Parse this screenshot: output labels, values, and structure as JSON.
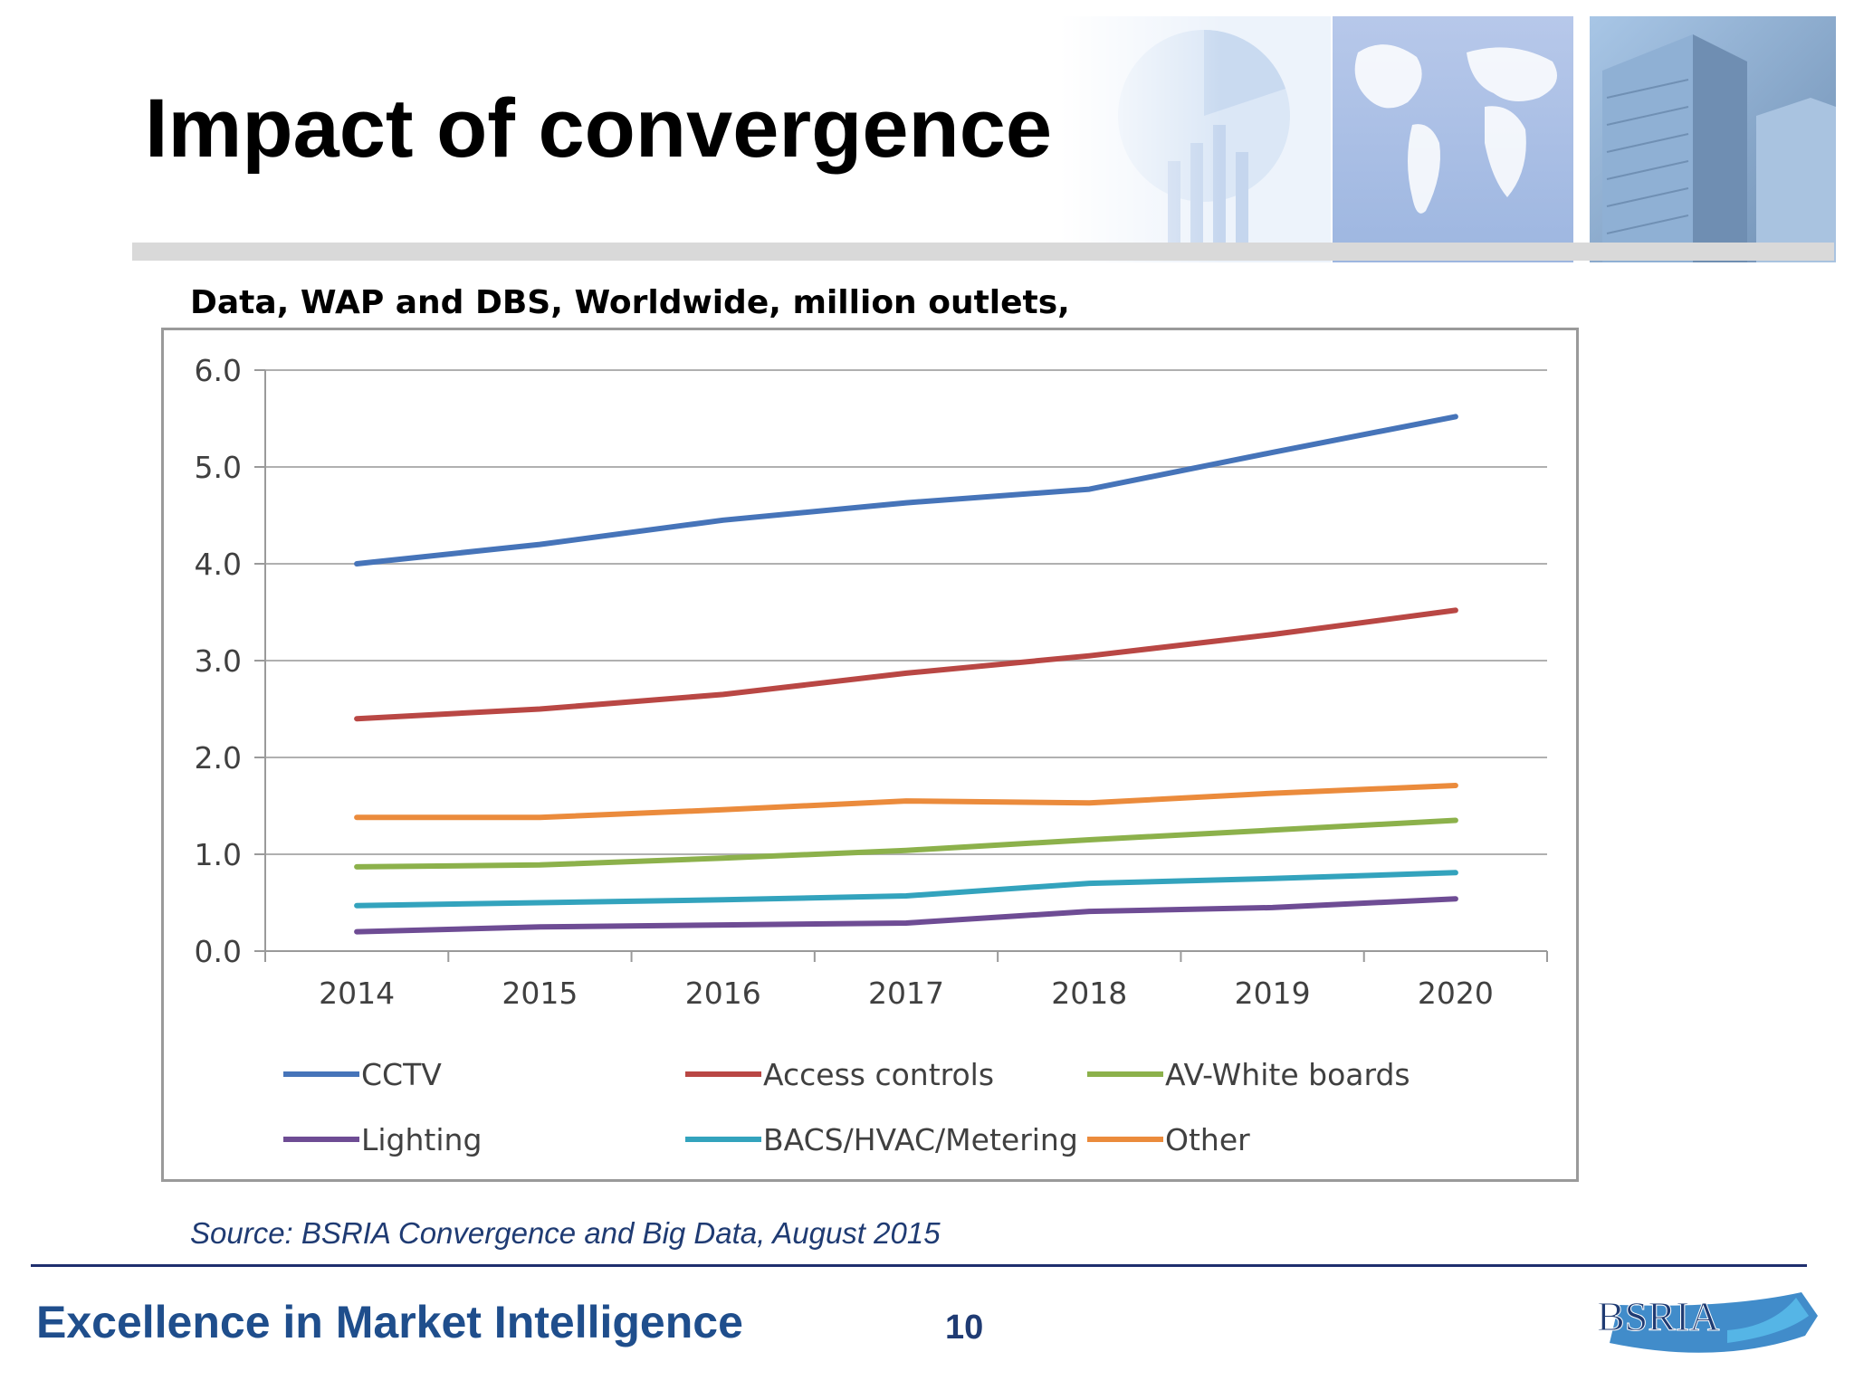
{
  "slide": {
    "title": "Impact of convergence",
    "subtitle": "Data, WAP and DBS, Worldwide, million outlets,",
    "source": "Source: BSRIA Convergence and Big Data, August 2015",
    "tagline": "Excellence in Market Intelligence",
    "page_number": "10",
    "logo_text": "BSRIA"
  },
  "chart_data": {
    "type": "line",
    "title": "",
    "xlabel": "",
    "ylabel": "",
    "x": [
      "2014",
      "2015",
      "2016",
      "2017",
      "2018",
      "2019",
      "2020"
    ],
    "y_ticks": [
      "0.0",
      "1.0",
      "2.0",
      "3.0",
      "4.0",
      "5.0",
      "6.0"
    ],
    "ylim": [
      0,
      6
    ],
    "grid": true,
    "legend_position": "bottom",
    "series": [
      {
        "name": "CCTV",
        "color": "#4674b9",
        "values": [
          4.0,
          4.2,
          4.45,
          4.63,
          4.77,
          5.15,
          5.52
        ]
      },
      {
        "name": "Access controls",
        "color": "#b94744",
        "values": [
          2.4,
          2.5,
          2.65,
          2.87,
          3.05,
          3.27,
          3.52
        ]
      },
      {
        "name": "AV-White boards",
        "color": "#8cb14b",
        "values": [
          0.87,
          0.89,
          0.96,
          1.04,
          1.15,
          1.25,
          1.35
        ]
      },
      {
        "name": "Lighting",
        "color": "#6e4c94",
        "values": [
          0.2,
          0.25,
          0.27,
          0.29,
          0.41,
          0.45,
          0.54
        ]
      },
      {
        "name": "BACS/HVAC/Metering",
        "color": "#33a3bd",
        "values": [
          0.47,
          0.5,
          0.53,
          0.57,
          0.7,
          0.75,
          0.81
        ]
      },
      {
        "name": "Other",
        "color": "#eb8b3c",
        "values": [
          1.38,
          1.38,
          1.46,
          1.55,
          1.53,
          1.63,
          1.71
        ]
      }
    ]
  }
}
